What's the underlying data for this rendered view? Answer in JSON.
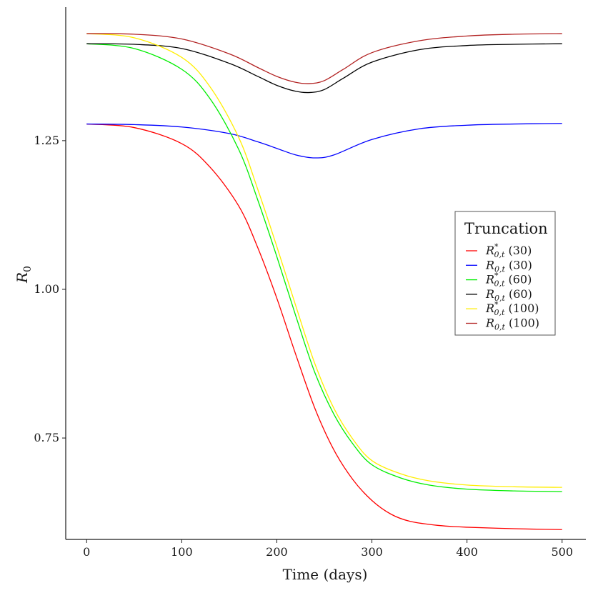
{
  "chart_data": {
    "type": "line",
    "xlabel": "Time (days)",
    "ylabel": "R",
    "ylabel_sub": "0",
    "xlim": [
      -22,
      525
    ],
    "ylim": [
      0.5795,
      1.4745
    ],
    "x_ticks": [
      0,
      100,
      200,
      300,
      400,
      500
    ],
    "y_ticks": [
      0.75,
      1.0,
      1.25
    ],
    "y_tick_labels": [
      "0.75",
      "1.00",
      "1.25"
    ],
    "grid": false,
    "legend_position": "right",
    "legend": {
      "title": "Truncation",
      "entries": [
        {
          "base": "R",
          "sup": "*",
          "sub": "0,t",
          "paren": "(30)",
          "color": "#ff0000"
        },
        {
          "base": "R",
          "sup": "",
          "sub": "0,t",
          "paren": "(30)",
          "color": "#0000ff"
        },
        {
          "base": "R",
          "sup": "*",
          "sub": "0,t",
          "paren": "(60)",
          "color": "#00ee00"
        },
        {
          "base": "R",
          "sup": "",
          "sub": "0,t",
          "paren": "(60)",
          "color": "#000000"
        },
        {
          "base": "R",
          "sup": "*",
          "sub": "0,t",
          "paren": "(100)",
          "color": "#ffee00"
        },
        {
          "base": "R",
          "sup": "",
          "sub": "0,t",
          "paren": "(100)",
          "color": "#b22222"
        }
      ]
    },
    "series": [
      {
        "color": "#ff0000",
        "x": [
          0,
          50,
          100,
          130,
          160,
          180,
          200,
          220,
          240,
          260,
          280,
          300,
          320,
          340,
          370,
          400,
          450,
          500
        ],
        "y": [
          1.278,
          1.272,
          1.245,
          1.205,
          1.14,
          1.07,
          0.985,
          0.89,
          0.8,
          0.73,
          0.68,
          0.645,
          0.622,
          0.61,
          0.603,
          0.6,
          0.5975,
          0.596
        ]
      },
      {
        "color": "#0000ff",
        "x": [
          0,
          50,
          100,
          150,
          180,
          200,
          220,
          240,
          260,
          300,
          350,
          400,
          450,
          500
        ],
        "y": [
          1.278,
          1.277,
          1.273,
          1.262,
          1.248,
          1.237,
          1.226,
          1.221,
          1.226,
          1.252,
          1.27,
          1.276,
          1.278,
          1.279
        ]
      },
      {
        "color": "#00ee00",
        "x": [
          0,
          50,
          100,
          130,
          160,
          180,
          200,
          220,
          240,
          260,
          280,
          300,
          330,
          360,
          400,
          450,
          500
        ],
        "y": [
          1.413,
          1.405,
          1.37,
          1.32,
          1.235,
          1.15,
          1.055,
          0.955,
          0.86,
          0.79,
          0.74,
          0.705,
          0.683,
          0.671,
          0.664,
          0.661,
          0.66
        ]
      },
      {
        "color": "#000000",
        "x": [
          0,
          50,
          100,
          150,
          180,
          200,
          220,
          235,
          250,
          270,
          300,
          350,
          400,
          450,
          500
        ],
        "y": [
          1.413,
          1.412,
          1.405,
          1.38,
          1.358,
          1.343,
          1.333,
          1.331,
          1.336,
          1.355,
          1.382,
          1.403,
          1.41,
          1.412,
          1.413
        ]
      },
      {
        "color": "#ffee00",
        "x": [
          0,
          50,
          100,
          130,
          160,
          180,
          200,
          220,
          240,
          260,
          280,
          300,
          330,
          360,
          400,
          450,
          500
        ],
        "y": [
          1.43,
          1.423,
          1.39,
          1.34,
          1.255,
          1.168,
          1.072,
          0.972,
          0.875,
          0.8,
          0.748,
          0.712,
          0.69,
          0.678,
          0.671,
          0.668,
          0.667
        ]
      },
      {
        "color": "#b22222",
        "x": [
          0,
          50,
          100,
          150,
          180,
          200,
          220,
          235,
          250,
          270,
          300,
          350,
          400,
          450,
          500
        ],
        "y": [
          1.43,
          1.429,
          1.421,
          1.396,
          1.373,
          1.358,
          1.348,
          1.346,
          1.351,
          1.37,
          1.398,
          1.418,
          1.426,
          1.429,
          1.43
        ]
      }
    ]
  }
}
